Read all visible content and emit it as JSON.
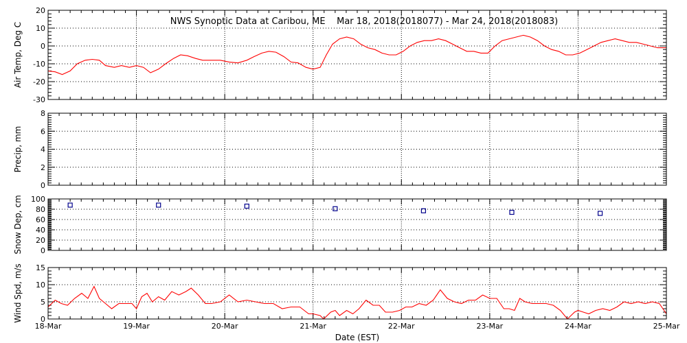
{
  "chart_data": {
    "type": "line",
    "title": "NWS Synoptic Data at Caribou, ME    Mar 18, 2018(2018077) - Mar 24, 2018(2018083)",
    "xlabel": "Date (EST)",
    "x_tick_labels": [
      "18-Mar",
      "19-Mar",
      "20-Mar",
      "21-Mar",
      "22-Mar",
      "23-Mar",
      "24-Mar",
      "25-Mar"
    ],
    "xlim": [
      0,
      7
    ],
    "grid": true,
    "panels": [
      {
        "id": "air-temp",
        "type": "line",
        "ylabel": "Air Temp, Deg C",
        "ylim": [
          -30,
          20
        ],
        "yticks": [
          -30,
          -20,
          -10,
          0,
          10,
          20
        ],
        "color": "#ff0000",
        "series": [
          {
            "x": [
              0.0,
              0.08,
              0.16,
              0.25,
              0.33,
              0.42,
              0.5,
              0.58,
              0.65,
              0.75,
              0.83,
              0.92,
              1.0,
              1.08,
              1.16,
              1.25,
              1.33,
              1.42,
              1.5,
              1.58,
              1.67,
              1.75,
              1.85,
              1.95,
              2.05,
              2.15,
              2.25,
              2.33,
              2.42,
              2.5,
              2.58,
              2.67,
              2.75,
              2.83,
              2.92,
              3.0,
              3.08,
              3.15,
              3.22,
              3.3,
              3.38,
              3.46,
              3.54,
              3.62,
              3.7,
              3.78,
              3.86,
              3.94,
              4.02,
              4.1,
              4.18,
              4.26,
              4.34,
              4.42,
              4.5,
              4.58,
              4.66,
              4.74,
              4.82,
              4.9,
              4.98,
              5.06,
              5.14,
              5.22,
              5.3,
              5.38,
              5.46,
              5.54,
              5.62,
              5.7,
              5.78,
              5.86,
              5.94,
              6.02,
              6.1,
              6.18,
              6.26,
              6.34,
              6.42,
              6.5,
              6.58,
              6.66,
              6.74,
              6.82,
              6.9,
              7.0
            ],
            "values": [
              -14,
              -14.5,
              -16,
              -14,
              -10,
              -8,
              -7.5,
              -8,
              -11,
              -12,
              -11,
              -12,
              -11,
              -12,
              -15,
              -13,
              -10,
              -7,
              -5,
              -5.5,
              -7,
              -8,
              -8,
              -8,
              -9,
              -9.5,
              -8,
              -6,
              -4,
              -3,
              -3.5,
              -6,
              -9,
              -9.5,
              -12,
              -13,
              -12,
              -5,
              1,
              4,
              5,
              4,
              1,
              -1,
              -2,
              -4,
              -5,
              -5,
              -3,
              0,
              2,
              3,
              3,
              4,
              3,
              1,
              -1,
              -3,
              -3,
              -4,
              -4,
              0,
              3,
              4,
              5,
              6,
              5,
              3,
              0,
              -2,
              -3,
              -5,
              -5,
              -4,
              -2,
              0,
              2,
              3,
              4,
              3,
              2,
              2,
              1,
              0,
              -1,
              -1
            ]
          }
        ]
      },
      {
        "id": "precip",
        "type": "line",
        "ylabel": "Precip, mm",
        "ylim": [
          0,
          8
        ],
        "yticks": [
          0,
          2,
          4,
          6,
          8
        ],
        "series": []
      },
      {
        "id": "snow-depth",
        "type": "scatter",
        "ylabel": "Snow Dep, cm",
        "ylim": [
          0,
          100
        ],
        "yticks": [
          0,
          20,
          40,
          60,
          80,
          100
        ],
        "color": "#00008b",
        "series": [
          {
            "x": [
              0.25,
              1.25,
              2.25,
              3.25,
              4.25,
              5.25,
              6.25
            ],
            "values": [
              88,
              88,
              86,
              81,
              77,
              74,
              72
            ]
          }
        ]
      },
      {
        "id": "wind-speed",
        "type": "line",
        "ylabel": "Wind Spd, m/s",
        "ylim": [
          0,
          15
        ],
        "yticks": [
          0,
          5,
          10,
          15
        ],
        "color": "#ff0000",
        "series": [
          {
            "x": [
              0.0,
              0.08,
              0.15,
              0.22,
              0.3,
              0.38,
              0.45,
              0.52,
              0.58,
              0.65,
              0.72,
              0.8,
              0.88,
              0.95,
              1.0,
              1.06,
              1.12,
              1.18,
              1.25,
              1.32,
              1.4,
              1.48,
              1.56,
              1.62,
              1.7,
              1.78,
              1.85,
              1.95,
              2.05,
              2.15,
              2.25,
              2.35,
              2.45,
              2.55,
              2.65,
              2.75,
              2.85,
              2.95,
              3.0,
              3.08,
              3.12,
              3.2,
              3.25,
              3.3,
              3.38,
              3.45,
              3.52,
              3.6,
              3.68,
              3.75,
              3.82,
              3.9,
              3.98,
              4.05,
              4.12,
              4.2,
              4.28,
              4.36,
              4.44,
              4.52,
              4.6,
              4.68,
              4.76,
              4.84,
              4.92,
              5.0,
              5.08,
              5.16,
              5.22,
              5.28,
              5.34,
              5.4,
              5.48,
              5.56,
              5.64,
              5.72,
              5.8,
              5.88,
              5.96,
              6.0,
              6.06,
              6.12,
              6.2,
              6.28,
              6.36,
              6.44,
              6.52,
              6.6,
              6.68,
              6.76,
              6.84,
              6.92,
              7.0
            ],
            "values": [
              3.5,
              5.5,
              4.5,
              4,
              6,
              7.5,
              6,
              9.5,
              6,
              4.5,
              3,
              4.5,
              4.5,
              4.5,
              3,
              6.5,
              7.5,
              5,
              6.5,
              5.5,
              8,
              7,
              8,
              9,
              7,
              4.5,
              4.5,
              5,
              7,
              5,
              5.5,
              5,
              4.5,
              4.5,
              3,
              3.5,
              3.5,
              1.5,
              1.5,
              1,
              0,
              2,
              2.5,
              1,
              2.5,
              1.5,
              3,
              5.5,
              4,
              4,
              2,
              2,
              2.5,
              3.5,
              3.5,
              4.5,
              4,
              5.5,
              8.5,
              6,
              5,
              4.5,
              5.5,
              5.5,
              7,
              6,
              6,
              3,
              3,
              2.5,
              6,
              5,
              4.5,
              4.5,
              4.5,
              4,
              2.5,
              0,
              2,
              2.5,
              2,
              1.5,
              2.5,
              3,
              2.5,
              3.5,
              5,
              4.5,
              5,
              4.5,
              5,
              4.5,
              1.5
            ]
          }
        ]
      }
    ]
  }
}
